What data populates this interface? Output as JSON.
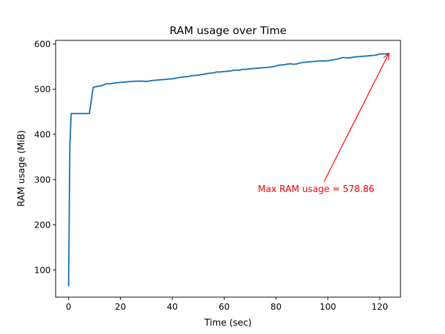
{
  "chart_data": {
    "type": "line",
    "title": "RAM usage over Time",
    "xlabel": "Time (sec)",
    "ylabel": "RAM usage (MiB)",
    "xlim": [
      -5,
      128
    ],
    "ylim": [
      40,
      608
    ],
    "xticks": [
      0,
      20,
      40,
      60,
      80,
      100,
      120
    ],
    "yticks": [
      100,
      200,
      300,
      400,
      500,
      600
    ],
    "grid": false,
    "series": [
      {
        "color": "#1f77b4",
        "x": [
          0,
          0.5,
          1,
          2,
          4,
          6,
          8,
          9.5,
          11,
          13,
          14.5,
          16,
          18,
          20,
          22,
          24,
          26,
          28,
          30,
          32,
          34,
          36,
          38,
          40,
          42,
          44,
          46,
          48,
          50,
          52,
          54,
          56,
          57,
          58,
          60,
          62,
          64,
          66,
          67,
          68,
          70,
          72,
          74,
          76,
          78,
          80,
          81,
          83,
          85,
          86,
          87,
          88,
          90,
          92,
          94,
          96,
          97,
          98,
          100,
          102,
          104,
          105,
          106,
          108,
          110,
          112,
          114,
          116,
          118,
          119,
          120,
          122,
          123.5
        ],
        "y": [
          65,
          380,
          446,
          446,
          446,
          446,
          446,
          504,
          506,
          508,
          512,
          512,
          514,
          515,
          516,
          517,
          517.5,
          518,
          517,
          519,
          520,
          521,
          522,
          523,
          525,
          527,
          528,
          530,
          531,
          533,
          535,
          536,
          538,
          538,
          539,
          540,
          542,
          542,
          544,
          544,
          545,
          546,
          547,
          548,
          549,
          551,
          553,
          554,
          556,
          556,
          555,
          556,
          559,
          560,
          561,
          562,
          563,
          562,
          563,
          565,
          567,
          569,
          570,
          569,
          571,
          572,
          573,
          574,
          575,
          576,
          578,
          578,
          578.86
        ]
      }
    ],
    "annotation": {
      "text": "Max RAM usage = 578.86",
      "color": "#ff0000",
      "xy": [
        123.5,
        578.86
      ],
      "xytext": [
        73,
        280
      ]
    }
  }
}
